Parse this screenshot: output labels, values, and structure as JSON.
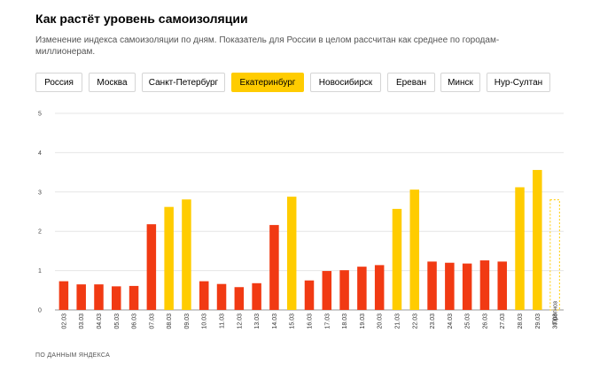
{
  "title": "Как растёт уровень самоизоляции",
  "subtitle": "Изменение индекса самоизоляции по дням. Показатель для России в целом рассчитан как среднее по городам-миллионерам.",
  "tabs": [
    {
      "label": "Россия",
      "active": false
    },
    {
      "label": "Москва",
      "active": false
    },
    {
      "label": "Санкт-Петербург",
      "active": false
    },
    {
      "label": "Екатеринбург",
      "active": true
    },
    {
      "label": "Новосибирск",
      "active": false
    },
    {
      "label": "Ереван",
      "active": false
    },
    {
      "label": "Минск",
      "active": false
    },
    {
      "label": "Нур-Султан",
      "active": false
    }
  ],
  "source": "ПО ДАННЫМ ЯНДЕКСА",
  "chart_data": {
    "type": "bar",
    "categories": [
      "02.03",
      "03.03",
      "04.03",
      "05.03",
      "06.03",
      "07.03",
      "08.03",
      "09.03",
      "10.03",
      "11.03",
      "12.03",
      "13.03",
      "14.03",
      "15.03",
      "16.03",
      "17.03",
      "18.03",
      "19.03",
      "20.03",
      "21.03",
      "22.03",
      "23.03",
      "24.03",
      "25.03",
      "26.03",
      "27.03",
      "28.03",
      "29.03",
      "30.03"
    ],
    "values": [
      0.73,
      0.65,
      0.65,
      0.6,
      0.61,
      2.18,
      2.62,
      2.81,
      0.73,
      0.66,
      0.58,
      0.68,
      2.16,
      2.88,
      0.75,
      0.99,
      1.01,
      1.1,
      1.14,
      2.57,
      3.06,
      1.23,
      1.2,
      1.18,
      1.26,
      1.23,
      3.12,
      3.56,
      2.8
    ],
    "bar_types": [
      "weekday",
      "weekday",
      "weekday",
      "weekday",
      "weekday",
      "weekday",
      "weekend",
      "weekend",
      "weekday",
      "weekday",
      "weekday",
      "weekday",
      "weekday",
      "weekend",
      "weekday",
      "weekday",
      "weekday",
      "weekday",
      "weekday",
      "weekend",
      "weekend",
      "weekday",
      "weekday",
      "weekday",
      "weekday",
      "weekday",
      "weekend",
      "weekend",
      "forecast"
    ],
    "colors": {
      "weekday": "#f13a13",
      "weekend": "#ffcc00",
      "forecast_outline": "#ffcc00",
      "grid": "#e6e6e6"
    },
    "annotations": [
      {
        "category": "30.03",
        "text": "Прогноз"
      }
    ],
    "yticks": [
      0,
      1,
      2,
      3,
      4,
      5
    ],
    "ylim": [
      0,
      5
    ],
    "grid": true,
    "legend": "none",
    "xlabel": "",
    "ylabel": ""
  }
}
